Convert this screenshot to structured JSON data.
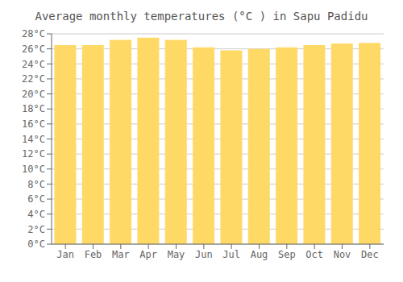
{
  "chart_data": {
    "type": "bar",
    "title": "Average monthly temperatures (°C ) in Sapu Padidu",
    "categories": [
      "Jan",
      "Feb",
      "Mar",
      "Apr",
      "May",
      "Jun",
      "Jul",
      "Aug",
      "Sep",
      "Oct",
      "Nov",
      "Dec"
    ],
    "values": [
      26.5,
      26.5,
      27.2,
      27.5,
      27.2,
      26.2,
      25.8,
      26.0,
      26.2,
      26.5,
      26.7,
      26.8
    ],
    "color": "#FFD966",
    "ylim": [
      0,
      28
    ],
    "yticks": [
      {
        "value": 0,
        "label": "0°C"
      },
      {
        "value": 2,
        "label": "2°C"
      },
      {
        "value": 4,
        "label": "4°C"
      },
      {
        "value": 6,
        "label": "6°C"
      },
      {
        "value": 8,
        "label": "8°C"
      },
      {
        "value": 10,
        "label": "10°C"
      },
      {
        "value": 12,
        "label": "12°C"
      },
      {
        "value": 14,
        "label": "14°C"
      },
      {
        "value": 16,
        "label": "16°C"
      },
      {
        "value": 18,
        "label": "18°C"
      },
      {
        "value": 20,
        "label": "20°C"
      },
      {
        "value": 22,
        "label": "22°C"
      },
      {
        "value": 24,
        "label": "24°C"
      },
      {
        "value": 26,
        "label": "26°C"
      },
      {
        "value": 28,
        "label": "28°C"
      }
    ],
    "grid": true
  }
}
